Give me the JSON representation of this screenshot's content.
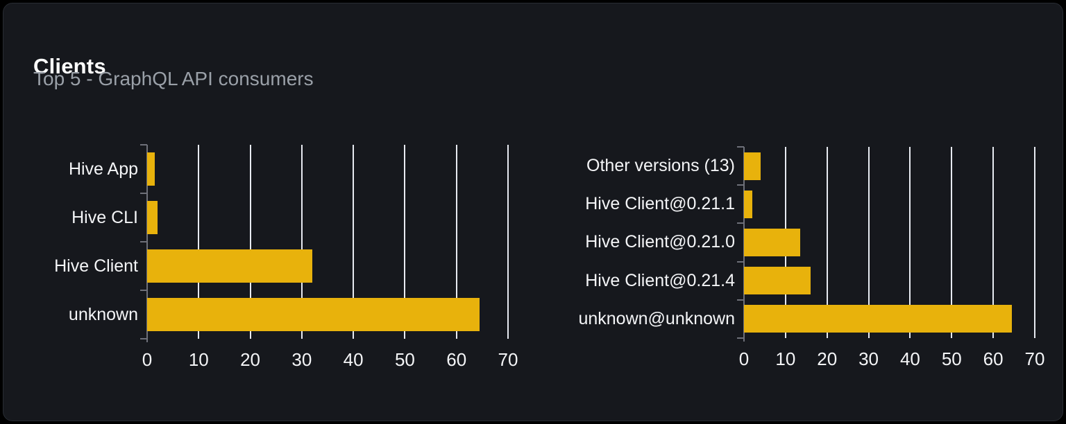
{
  "card": {
    "title": "Clients",
    "subtitle": "Top 5 - GraphQL API consumers"
  },
  "colors": {
    "bar": "#e8b20c",
    "card_background": "#16181d",
    "card_border": "#282c33",
    "page_background": "#000000",
    "gridline": "#e8ebf2",
    "axis": "#6e7079",
    "title_text": "#ffffff",
    "subtitle_text": "#9aa0a8",
    "label_text": "#f4f5f7"
  },
  "chart_data": [
    {
      "type": "bar",
      "name": "clients-top5",
      "orientation": "horizontal",
      "categories": [
        "Hive App",
        "Hive CLI",
        "Hive Client",
        "unknown"
      ],
      "values": [
        1.5,
        2,
        32,
        64.5
      ],
      "xlim": [
        0,
        70
      ],
      "x_ticks": [
        0,
        10,
        20,
        30,
        40,
        50,
        60,
        70
      ],
      "grid": "vertical-only",
      "legend": "none",
      "title": "",
      "xlabel": "",
      "ylabel": ""
    },
    {
      "type": "bar",
      "name": "client-versions-top5",
      "orientation": "horizontal",
      "categories": [
        "Other versions (13)",
        "Hive Client@0.21.1",
        "Hive Client@0.21.0",
        "Hive Client@0.21.4",
        "unknown@unknown"
      ],
      "values": [
        4,
        2,
        13.5,
        16,
        64.5
      ],
      "xlim": [
        0,
        70
      ],
      "x_ticks": [
        0,
        10,
        20,
        30,
        40,
        50,
        60,
        70
      ],
      "grid": "vertical-only",
      "legend": "none",
      "title": "",
      "xlabel": "",
      "ylabel": ""
    }
  ]
}
